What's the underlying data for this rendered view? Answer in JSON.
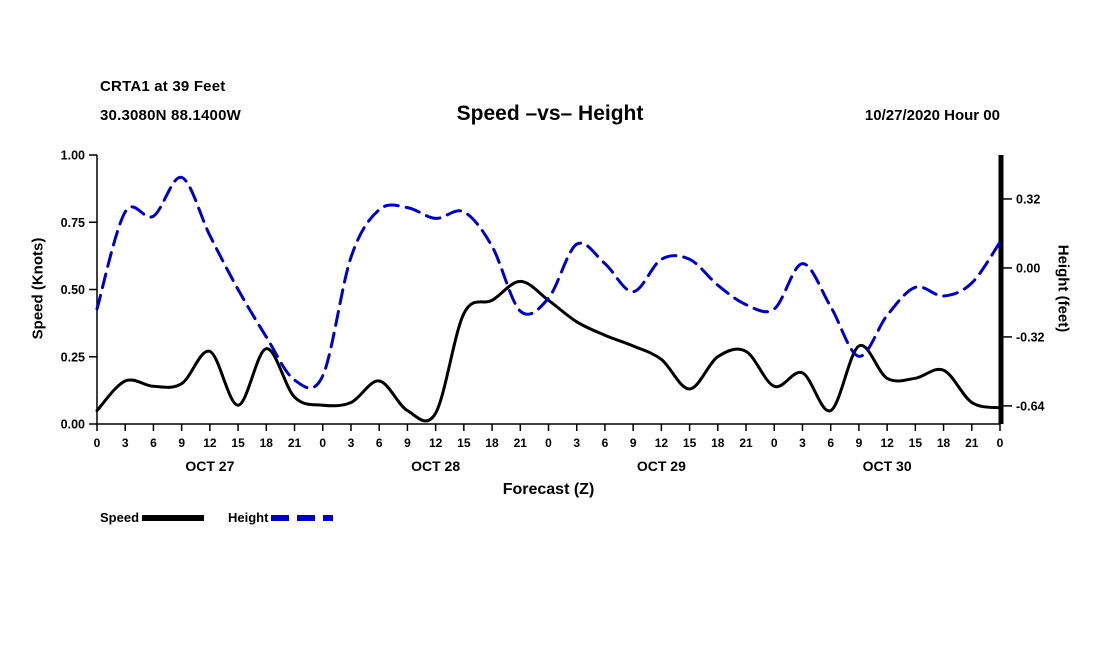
{
  "header": {
    "station_line1": "CRTA1 at 39 Feet",
    "station_line2": "30.3080N 88.1400W",
    "title": "Speed –vs– Height",
    "run_label": "10/27/2020 Hour 00"
  },
  "legend": {
    "speed_label": "Speed",
    "height_label": "Height"
  },
  "chart_data": {
    "type": "line",
    "title": "Speed –vs– Height",
    "xlabel": "Forecast (Z)",
    "grid": false,
    "x_hours": [
      0,
      3,
      6,
      9,
      12,
      15,
      18,
      21,
      24,
      27,
      30,
      33,
      36,
      39,
      42,
      45,
      48,
      51,
      54,
      57,
      60,
      63,
      66,
      69,
      72,
      75,
      78,
      81,
      84,
      87,
      90,
      93,
      96
    ],
    "x_tick_labels": [
      "0",
      "3",
      "6",
      "9",
      "12",
      "15",
      "18",
      "21",
      "0",
      "3",
      "6",
      "9",
      "12",
      "15",
      "18",
      "21",
      "0",
      "3",
      "6",
      "9",
      "12",
      "15",
      "18",
      "21",
      "0",
      "3",
      "6",
      "9",
      "12",
      "15",
      "18",
      "21",
      "0"
    ],
    "day_labels": [
      "OCT 27",
      "OCT 28",
      "OCT 29",
      "OCT 30"
    ],
    "left_axis": {
      "label": "Speed (Knots)",
      "tick_labels": [
        "0.00",
        "0.25",
        "0.50",
        "0.75",
        "1.00"
      ],
      "tick_values": [
        0,
        0.25,
        0.5,
        0.75,
        1.0
      ],
      "min": 0,
      "max": 1.0
    },
    "right_axis": {
      "label": "Height (feet)",
      "tick_labels": [
        "0.32",
        "0.00",
        "-0.32",
        "-0.64"
      ],
      "tick_values": [
        0.32,
        0.0,
        -0.32,
        -0.64
      ],
      "min": -0.724,
      "max": 0.524
    },
    "series": [
      {
        "name": "Speed",
        "axis": "left",
        "color": "#000000",
        "dash": "solid",
        "values": [
          0.05,
          0.16,
          0.14,
          0.15,
          0.27,
          0.07,
          0.28,
          0.1,
          0.07,
          0.08,
          0.16,
          0.05,
          0.04,
          0.41,
          0.46,
          0.53,
          0.46,
          0.38,
          0.33,
          0.29,
          0.24,
          0.13,
          0.25,
          0.27,
          0.14,
          0.19,
          0.05,
          0.29,
          0.17,
          0.17,
          0.2,
          0.08,
          0.06
        ]
      },
      {
        "name": "Height",
        "axis": "right",
        "color": "#0000cc",
        "dash": "dashed",
        "values": [
          -0.19,
          0.26,
          0.24,
          0.42,
          0.15,
          -0.1,
          -0.32,
          -0.52,
          -0.5,
          0.05,
          0.27,
          0.28,
          0.23,
          0.26,
          0.1,
          -0.2,
          -0.14,
          0.11,
          0.02,
          -0.11,
          0.04,
          0.04,
          -0.08,
          -0.17,
          -0.19,
          0.02,
          -0.18,
          -0.41,
          -0.22,
          -0.09,
          -0.13,
          -0.07,
          0.12
        ]
      }
    ]
  }
}
